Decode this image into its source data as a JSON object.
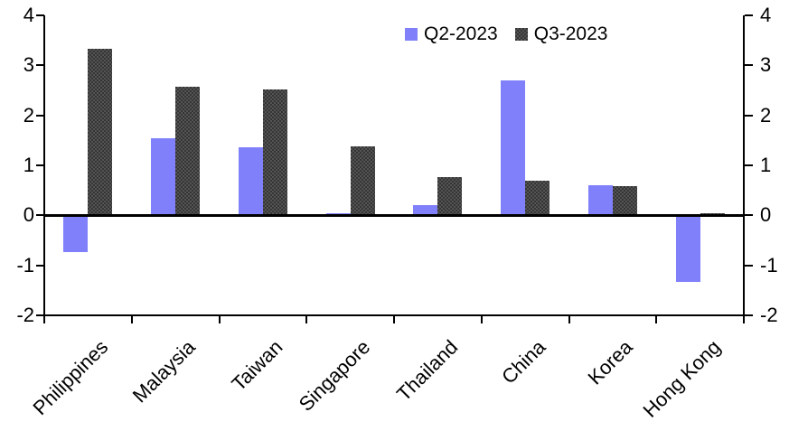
{
  "chart_data": {
    "type": "bar",
    "title": "",
    "categories": [
      "Philippines",
      "Malaysia",
      "Taiwan",
      "Singapore",
      "Thailand",
      "China",
      "Korea",
      "Hong Kong"
    ],
    "series": [
      {
        "name": "Q2-2023",
        "color": "#8080FB",
        "pattern": false,
        "values": [
          -0.73,
          1.55,
          1.37,
          0.04,
          0.21,
          2.7,
          0.6,
          -1.34
        ]
      },
      {
        "name": "Q3-2023",
        "color": "#3E3E3E",
        "pattern": true,
        "values": [
          3.33,
          2.58,
          2.51,
          1.38,
          0.76,
          0.7,
          0.59,
          0.05
        ]
      }
    ],
    "ylim": [
      -2,
      4
    ],
    "yticks": [
      4,
      3,
      2,
      1,
      0,
      -1,
      -2
    ],
    "y_axis_sides": "both",
    "grid": false,
    "legend_position": "top-center",
    "zero_baseline": true
  }
}
